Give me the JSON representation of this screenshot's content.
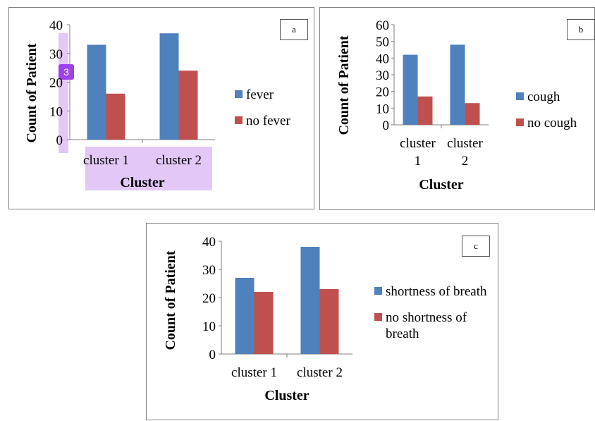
{
  "charts": [
    {
      "label": "a",
      "legend": [
        "fever",
        "no fever"
      ]
    },
    {
      "label": "b",
      "legend": [
        "cough",
        "no cough"
      ]
    },
    {
      "label": "c",
      "legend": [
        "shortness of breath",
        "no shortness of breath"
      ]
    }
  ],
  "badge": "3",
  "colors": {
    "series1": "#4f81bd",
    "series2": "#c0504d",
    "axis": "#7f7f7f",
    "highlight": "#e3c8f7"
  },
  "chart_data": [
    {
      "type": "bar",
      "categories": [
        "cluster 1",
        "cluster 2"
      ],
      "series": [
        {
          "name": "fever",
          "values": [
            33,
            37
          ]
        },
        {
          "name": "no fever",
          "values": [
            16,
            24
          ]
        }
      ],
      "xlabel": "Cluster",
      "ylabel": "Count of Patient",
      "ylim": [
        0,
        40
      ],
      "yticks": [
        0,
        10,
        20,
        30,
        40
      ],
      "legend": "right",
      "grid": false
    },
    {
      "type": "bar",
      "categories": [
        "cluster 1",
        "cluster 2"
      ],
      "series": [
        {
          "name": "cough",
          "values": [
            42,
            48
          ]
        },
        {
          "name": "no cough",
          "values": [
            17,
            13
          ]
        }
      ],
      "xlabel": "Cluster",
      "ylabel": "Count of Patient",
      "ylim": [
        0,
        60
      ],
      "yticks": [
        0,
        10,
        20,
        30,
        40,
        50,
        60
      ],
      "legend": "right",
      "grid": false
    },
    {
      "type": "bar",
      "categories": [
        "cluster 1",
        "cluster 2"
      ],
      "series": [
        {
          "name": "shortness of breath",
          "values": [
            27,
            38
          ]
        },
        {
          "name": "no shortness of breath",
          "values": [
            22,
            23
          ]
        }
      ],
      "xlabel": "Cluster",
      "ylabel": "Count of Patient",
      "ylim": [
        0,
        40
      ],
      "yticks": [
        0,
        10,
        20,
        30,
        40
      ],
      "legend": "right",
      "grid": false
    }
  ]
}
